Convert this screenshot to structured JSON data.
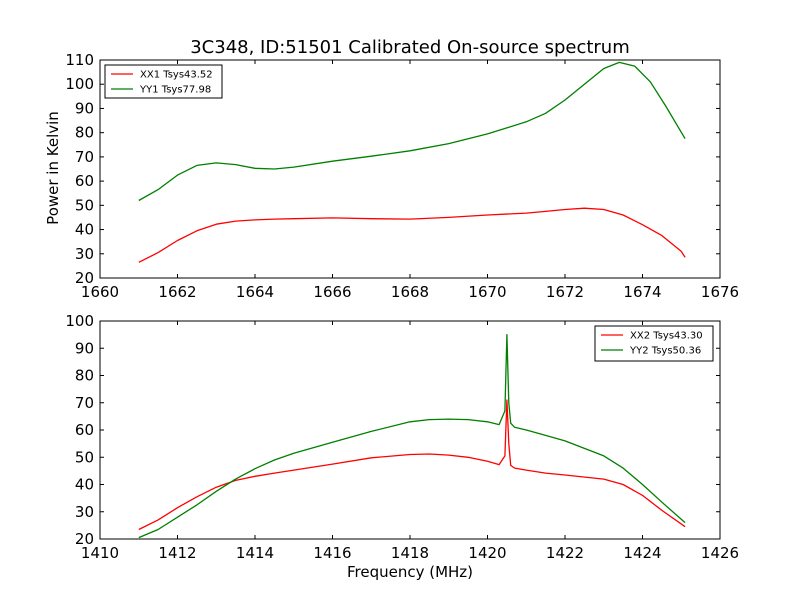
{
  "chart_data": [
    {
      "type": "line",
      "title": "3C348, ID:51501 Calibrated On-source spectrum",
      "xlabel": "",
      "ylabel": "Power in Kelvin",
      "xlim": [
        1660,
        1676
      ],
      "ylim": [
        20,
        110
      ],
      "xticks": [
        "1660",
        "1662",
        "1664",
        "1666",
        "1668",
        "1670",
        "1672",
        "1674",
        "1676"
      ],
      "yticks": [
        "20",
        "30",
        "40",
        "50",
        "60",
        "70",
        "80",
        "90",
        "100",
        "110"
      ],
      "legend_position": "top-left",
      "series": [
        {
          "name": "XX1 Tsys43.52",
          "color": "#ff0000",
          "x": [
            1661.0,
            1661.5,
            1662.0,
            1662.5,
            1663.0,
            1663.5,
            1664.0,
            1664.5,
            1665.0,
            1666.0,
            1667.0,
            1668.0,
            1669.0,
            1670.0,
            1671.0,
            1671.5,
            1672.0,
            1672.5,
            1673.0,
            1673.5,
            1674.0,
            1674.5,
            1675.0,
            1675.1
          ],
          "y": [
            26.5,
            30.5,
            35.5,
            39.5,
            42.2,
            43.5,
            44.0,
            44.3,
            44.5,
            44.8,
            44.5,
            44.3,
            45.0,
            46.0,
            46.8,
            47.5,
            48.3,
            48.8,
            48.3,
            46.0,
            42.0,
            37.5,
            31.0,
            28.5
          ]
        },
        {
          "name": "YY1 Tsys77.98",
          "color": "#008000",
          "x": [
            1661.0,
            1661.5,
            1662.0,
            1662.5,
            1663.0,
            1663.5,
            1664.0,
            1664.5,
            1665.0,
            1666.0,
            1667.0,
            1668.0,
            1669.0,
            1670.0,
            1671.0,
            1671.5,
            1672.0,
            1672.5,
            1673.0,
            1673.4,
            1673.8,
            1674.2,
            1674.6,
            1675.1
          ],
          "y": [
            52.0,
            56.5,
            62.5,
            66.5,
            67.5,
            66.8,
            65.3,
            65.0,
            65.8,
            68.2,
            70.3,
            72.5,
            75.5,
            79.5,
            84.5,
            88.0,
            93.5,
            100.0,
            106.5,
            109.0,
            107.5,
            101.0,
            91.0,
            77.5
          ]
        }
      ]
    },
    {
      "type": "line",
      "title": "",
      "xlabel": "Frequency (MHz)",
      "ylabel": "",
      "xlim": [
        1410,
        1426
      ],
      "ylim": [
        20,
        100
      ],
      "xticks": [
        "1410",
        "1412",
        "1414",
        "1416",
        "1418",
        "1420",
        "1422",
        "1424",
        "1426"
      ],
      "yticks": [
        "20",
        "30",
        "40",
        "50",
        "60",
        "70",
        "80",
        "90",
        "100"
      ],
      "legend_position": "top-right",
      "series": [
        {
          "name": "XX2 Tsys43.30",
          "color": "#ff0000",
          "x": [
            1411.0,
            1411.5,
            1412.0,
            1412.5,
            1413.0,
            1413.5,
            1414.0,
            1414.5,
            1415.0,
            1416.0,
            1417.0,
            1418.0,
            1418.5,
            1419.0,
            1419.5,
            1420.0,
            1420.3,
            1420.45,
            1420.5,
            1420.55,
            1420.6,
            1420.7,
            1421.0,
            1421.5,
            1422.0,
            1423.0,
            1423.5,
            1424.0,
            1424.5,
            1425.1
          ],
          "y": [
            23.5,
            27.0,
            31.5,
            35.5,
            39.0,
            41.5,
            43.0,
            44.2,
            45.3,
            47.5,
            49.8,
            51.0,
            51.2,
            50.8,
            50.0,
            48.5,
            47.3,
            50.5,
            71.0,
            55.0,
            47.0,
            46.0,
            45.3,
            44.2,
            43.5,
            42.0,
            40.0,
            36.0,
            30.5,
            24.5
          ]
        },
        {
          "name": "YY2 Tsys50.36",
          "color": "#008000",
          "x": [
            1411.0,
            1411.5,
            1412.0,
            1412.5,
            1413.0,
            1413.5,
            1414.0,
            1414.5,
            1415.0,
            1416.0,
            1417.0,
            1418.0,
            1418.5,
            1419.0,
            1419.5,
            1420.0,
            1420.3,
            1420.45,
            1420.5,
            1420.55,
            1420.6,
            1420.7,
            1421.0,
            1421.5,
            1422.0,
            1423.0,
            1423.5,
            1424.0,
            1424.5,
            1425.1
          ],
          "y": [
            20.5,
            23.5,
            28.0,
            32.5,
            37.5,
            42.0,
            45.8,
            49.0,
            51.5,
            55.5,
            59.5,
            63.0,
            63.8,
            64.0,
            63.8,
            63.0,
            62.0,
            67.0,
            95.0,
            70.0,
            62.5,
            61.0,
            60.0,
            58.0,
            56.0,
            50.5,
            46.0,
            40.0,
            33.5,
            26.0
          ]
        }
      ]
    }
  ]
}
